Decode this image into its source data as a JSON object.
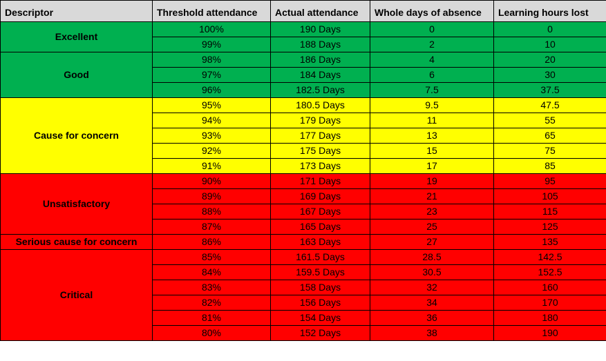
{
  "colors": {
    "header": "#d9d9d9",
    "green": "#00b050",
    "yellow": "#ffff00",
    "red": "#ff0000",
    "border": "#000000"
  },
  "table": {
    "headers": [
      "Descriptor",
      "Threshold attendance",
      "Actual attendance",
      "Whole days of absence",
      "Learning hours lost"
    ],
    "groups": [
      {
        "descriptor": "Excellent",
        "color": "green",
        "rows": [
          [
            "100%",
            "190 Days",
            "0",
            "0"
          ],
          [
            "99%",
            "188 Days",
            "2",
            "10"
          ]
        ]
      },
      {
        "descriptor": "Good",
        "color": "green",
        "rows": [
          [
            "98%",
            "186 Days",
            "4",
            "20"
          ],
          [
            "97%",
            "184 Days",
            "6",
            "30"
          ],
          [
            "96%",
            "182.5 Days",
            "7.5",
            "37.5"
          ]
        ]
      },
      {
        "descriptor": "Cause for concern",
        "color": "yellow",
        "rows": [
          [
            "95%",
            "180.5 Days",
            "9.5",
            "47.5"
          ],
          [
            "94%",
            "179 Days",
            "11",
            "55"
          ],
          [
            "93%",
            "177 Days",
            "13",
            "65"
          ],
          [
            "92%",
            "175 Days",
            "15",
            "75"
          ],
          [
            "91%",
            "173 Days",
            "17",
            "85"
          ]
        ]
      },
      {
        "descriptor": "Unsatisfactory",
        "color": "red",
        "rows": [
          [
            "90%",
            "171 Days",
            "19",
            "95"
          ],
          [
            "89%",
            "169 Days",
            "21",
            "105"
          ],
          [
            "88%",
            "167 Days",
            "23",
            "115"
          ],
          [
            "87%",
            "165 Days",
            "25",
            "125"
          ]
        ]
      },
      {
        "descriptor": "Serious cause for concern",
        "color": "red",
        "rows": [
          [
            "86%",
            "163 Days",
            "27",
            "135"
          ]
        ]
      },
      {
        "descriptor": "Critical",
        "color": "red",
        "rows": [
          [
            "85%",
            "161.5 Days",
            "28.5",
            "142.5"
          ],
          [
            "84%",
            "159.5 Days",
            "30.5",
            "152.5"
          ],
          [
            "83%",
            "158 Days",
            "32",
            "160"
          ],
          [
            "82%",
            "156 Days",
            "34",
            "170"
          ],
          [
            "81%",
            "154 Days",
            "36",
            "180"
          ],
          [
            "80%",
            "152 Days",
            "38",
            "190"
          ]
        ]
      }
    ]
  }
}
